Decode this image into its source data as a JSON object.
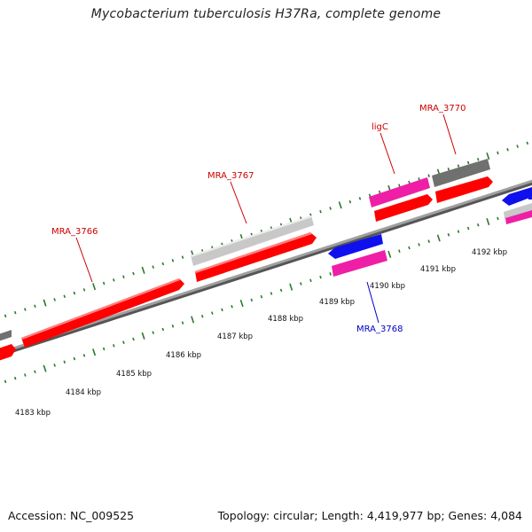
{
  "title": "Mycobacterium tuberculosis H37Ra, complete genome",
  "footer": {
    "accession": "Accession: NC_009525",
    "summary": "Topology: circular; Length: 4,419,977 bp; Genes: 4,084"
  },
  "colors": {
    "gene_red": "#ff0000",
    "gene_blue": "#1010ee",
    "gene_pink": "#ee1fa6",
    "gene_lightgray": "#c8c8c8",
    "gene_darkgray": "#707070",
    "backbone": "#8a8a8a",
    "tick_green": "#2a7a2a",
    "label_red": "#cc0000",
    "label_blue": "#0000cc"
  },
  "ruler_labels": [
    "4183 kbp",
    "4184 kbp",
    "4185 kbp",
    "4186 kbp",
    "4187 kbp",
    "4188 kbp",
    "4189 kbp",
    "4190 kbp",
    "4191 kbp",
    "4192 kbp"
  ],
  "gene_labels": [
    {
      "text": "MRA_3766",
      "color": "red"
    },
    {
      "text": "MRA_3767",
      "color": "red"
    },
    {
      "text": "ligC",
      "color": "red"
    },
    {
      "text": "MRA_3770",
      "color": "red"
    },
    {
      "text": "MRA_3768",
      "color": "blue"
    }
  ]
}
